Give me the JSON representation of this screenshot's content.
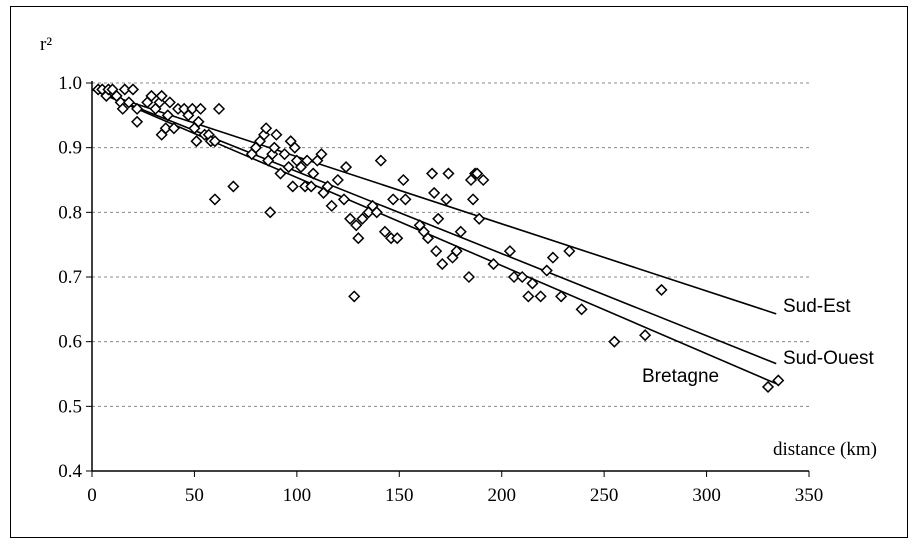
{
  "chart_data": {
    "type": "scatter",
    "title": "",
    "ylabel": "r²",
    "xlabel": "distance (km)",
    "xlim": [
      0,
      350
    ],
    "ylim": [
      0.4,
      1.0
    ],
    "x_ticks": [
      "0",
      "50",
      "100",
      "150",
      "200",
      "250",
      "300",
      "350"
    ],
    "y_ticks": [
      "0.4",
      "0.5",
      "0.6",
      "0.7",
      "0.8",
      "0.9",
      "1.0"
    ],
    "grid": "horizontal-dashed",
    "marker": "diamond-open",
    "points": [
      [
        3,
        0.99
      ],
      [
        5,
        0.99
      ],
      [
        7,
        0.98
      ],
      [
        8,
        0.99
      ],
      [
        10,
        0.99
      ],
      [
        12,
        0.98
      ],
      [
        14,
        0.97
      ],
      [
        15,
        0.96
      ],
      [
        16,
        0.99
      ],
      [
        18,
        0.97
      ],
      [
        20,
        0.99
      ],
      [
        22,
        0.96
      ],
      [
        22,
        0.94
      ],
      [
        27,
        0.97
      ],
      [
        29,
        0.98
      ],
      [
        31,
        0.96
      ],
      [
        33,
        0.97
      ],
      [
        34,
        0.98
      ],
      [
        34,
        0.92
      ],
      [
        36,
        0.93
      ],
      [
        37,
        0.95
      ],
      [
        38,
        0.97
      ],
      [
        40,
        0.93
      ],
      [
        42,
        0.96
      ],
      [
        45,
        0.96
      ],
      [
        47,
        0.95
      ],
      [
        49,
        0.96
      ],
      [
        50,
        0.93
      ],
      [
        51,
        0.91
      ],
      [
        52,
        0.94
      ],
      [
        53,
        0.96
      ],
      [
        55,
        0.92
      ],
      [
        57,
        0.92
      ],
      [
        58,
        0.91
      ],
      [
        60,
        0.91
      ],
      [
        60,
        0.82
      ],
      [
        62,
        0.96
      ],
      [
        69,
        0.84
      ],
      [
        78,
        0.89
      ],
      [
        80,
        0.9
      ],
      [
        82,
        0.91
      ],
      [
        84,
        0.92
      ],
      [
        85,
        0.93
      ],
      [
        86,
        0.88
      ],
      [
        87,
        0.8
      ],
      [
        88,
        0.89
      ],
      [
        89,
        0.9
      ],
      [
        90,
        0.92
      ],
      [
        92,
        0.86
      ],
      [
        94,
        0.89
      ],
      [
        96,
        0.87
      ],
      [
        97,
        0.91
      ],
      [
        98,
        0.84
      ],
      [
        99,
        0.9
      ],
      [
        100,
        0.88
      ],
      [
        102,
        0.87
      ],
      [
        104,
        0.84
      ],
      [
        105,
        0.88
      ],
      [
        107,
        0.84
      ],
      [
        108,
        0.86
      ],
      [
        110,
        0.88
      ],
      [
        112,
        0.89
      ],
      [
        113,
        0.83
      ],
      [
        115,
        0.84
      ],
      [
        117,
        0.81
      ],
      [
        120,
        0.85
      ],
      [
        123,
        0.82
      ],
      [
        124,
        0.87
      ],
      [
        126,
        0.79
      ],
      [
        128,
        0.67
      ],
      [
        129,
        0.78
      ],
      [
        130,
        0.76
      ],
      [
        132,
        0.79
      ],
      [
        135,
        0.8
      ],
      [
        137,
        0.81
      ],
      [
        139,
        0.8
      ],
      [
        141,
        0.88
      ],
      [
        143,
        0.77
      ],
      [
        146,
        0.76
      ],
      [
        147,
        0.82
      ],
      [
        149,
        0.76
      ],
      [
        152,
        0.85
      ],
      [
        153,
        0.82
      ],
      [
        160,
        0.78
      ],
      [
        162,
        0.77
      ],
      [
        164,
        0.76
      ],
      [
        166,
        0.86
      ],
      [
        167,
        0.83
      ],
      [
        168,
        0.74
      ],
      [
        169,
        0.79
      ],
      [
        171,
        0.72
      ],
      [
        173,
        0.82
      ],
      [
        174,
        0.86
      ],
      [
        176,
        0.73
      ],
      [
        178,
        0.74
      ],
      [
        180,
        0.77
      ],
      [
        184,
        0.7
      ],
      [
        185,
        0.85
      ],
      [
        186,
        0.82
      ],
      [
        187,
        0.86
      ],
      [
        188,
        0.86
      ],
      [
        189,
        0.79
      ],
      [
        191,
        0.85
      ],
      [
        196,
        0.72
      ],
      [
        204,
        0.74
      ],
      [
        206,
        0.7
      ],
      [
        210,
        0.7
      ],
      [
        213,
        0.67
      ],
      [
        215,
        0.69
      ],
      [
        219,
        0.67
      ],
      [
        222,
        0.71
      ],
      [
        225,
        0.73
      ],
      [
        229,
        0.67
      ],
      [
        233,
        0.74
      ],
      [
        239,
        0.65
      ],
      [
        255,
        0.6
      ],
      [
        270,
        0.61
      ],
      [
        278,
        0.68
      ],
      [
        330,
        0.53
      ],
      [
        335,
        0.54
      ]
    ],
    "series": [
      {
        "name": "Sud-Est",
        "x": [
          0,
          334
        ],
        "y": [
          0.99,
          0.643
        ]
      },
      {
        "name": "Sud-Ouest",
        "x": [
          0,
          334
        ],
        "y": [
          0.99,
          0.566
        ]
      },
      {
        "name": "Bretagne",
        "x": [
          0,
          334
        ],
        "y": [
          0.99,
          0.535
        ]
      }
    ]
  }
}
